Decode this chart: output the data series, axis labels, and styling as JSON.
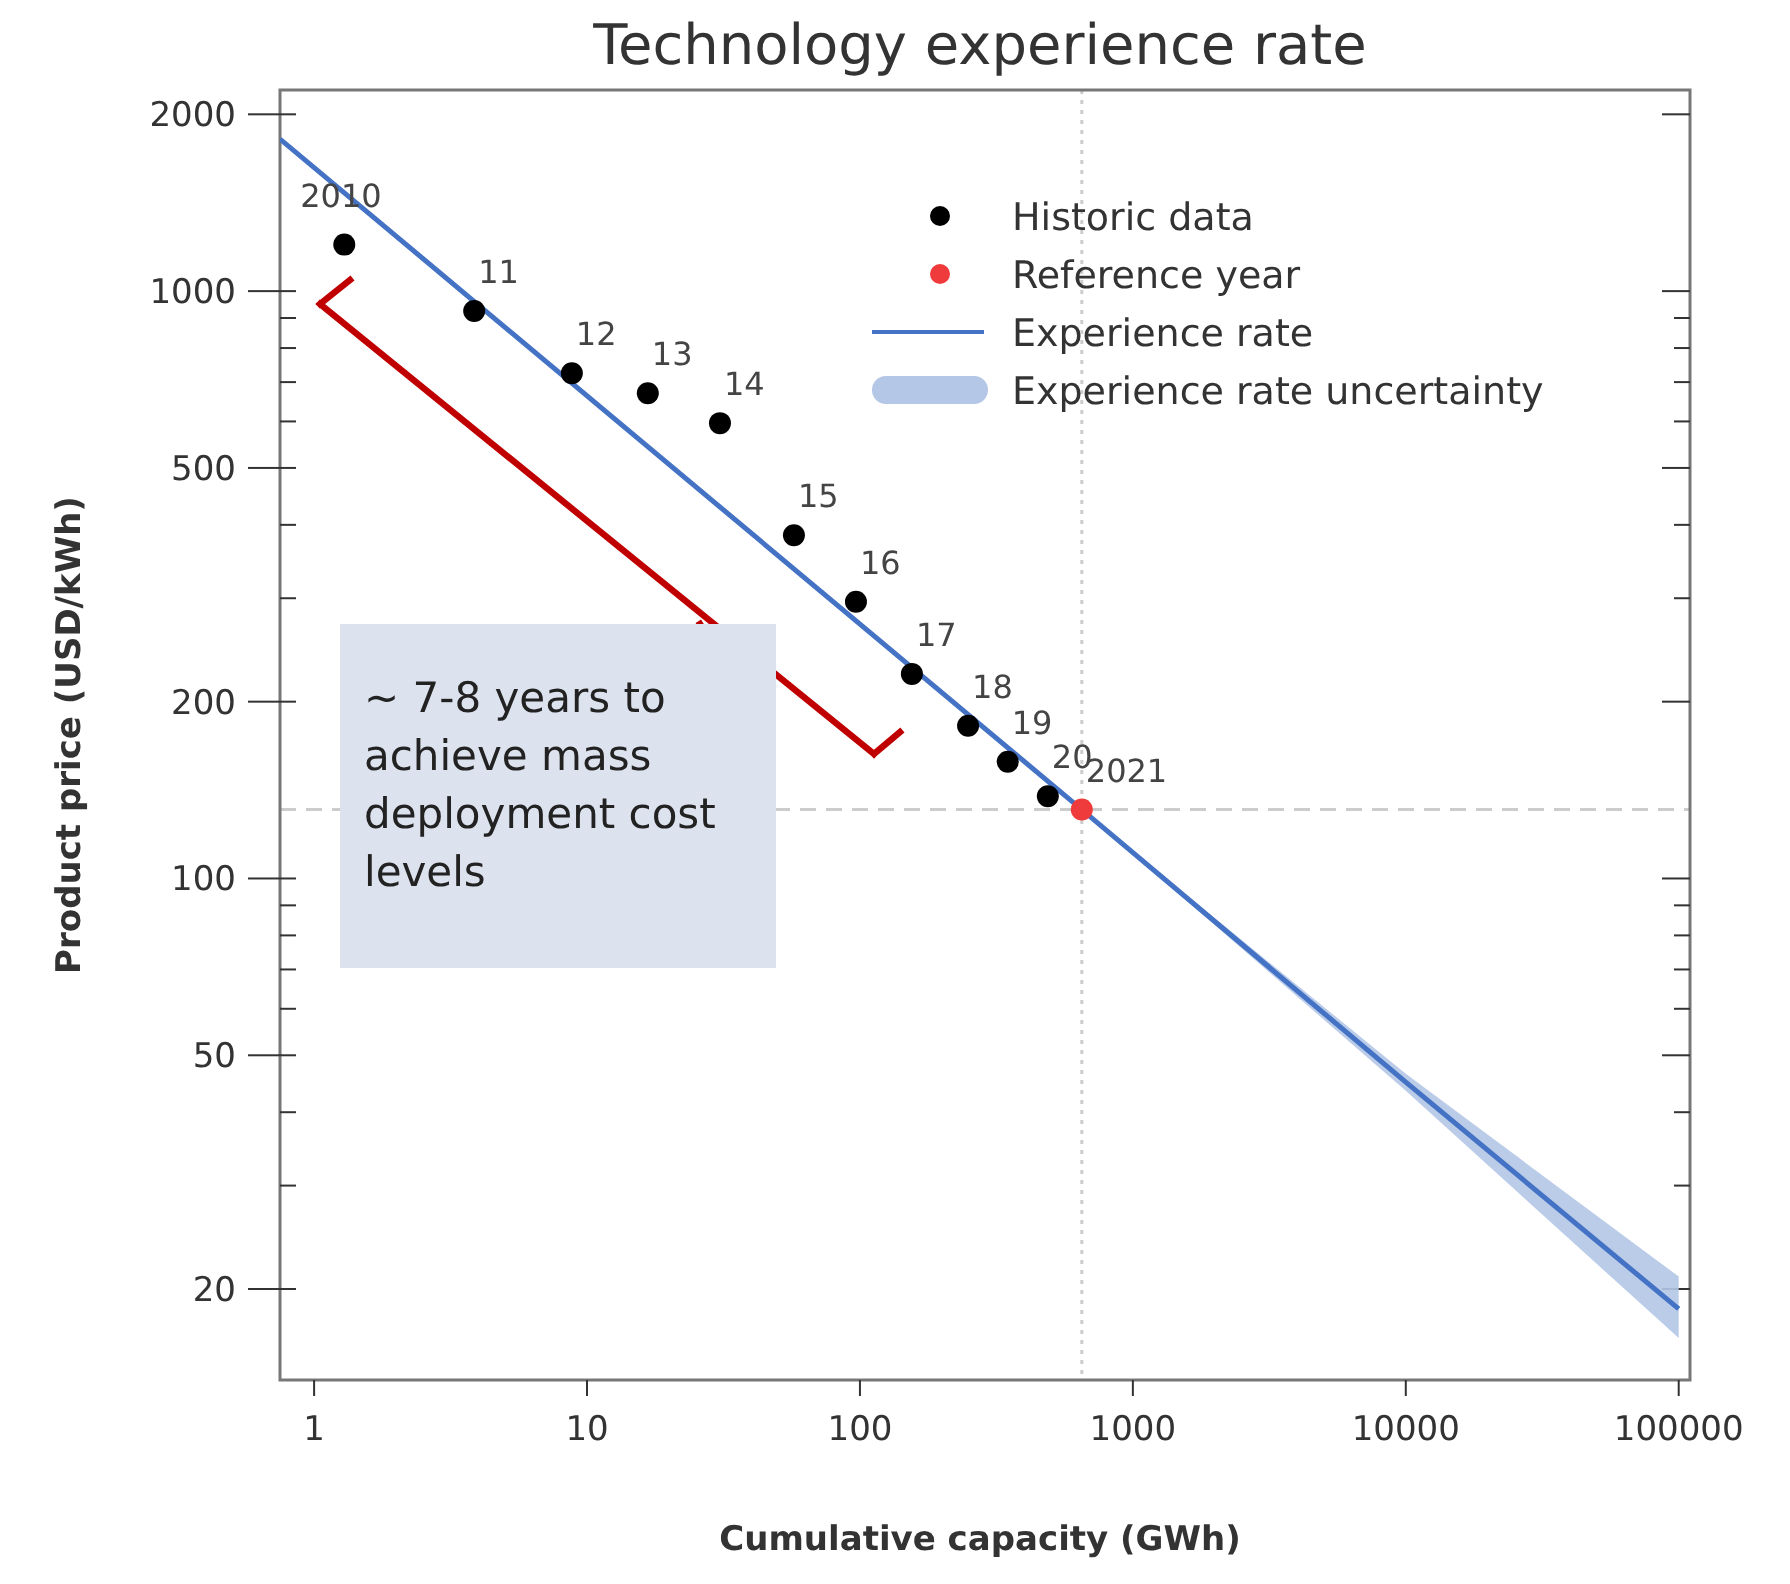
{
  "chart_data": {
    "type": "scatter",
    "title": "Technology experience rate",
    "xlabel": "Cumulative capacity (GWh)",
    "ylabel": "Product price (USD/kWh)",
    "log": "xy",
    "xlim": [
      0.75,
      110000
    ],
    "ylim": [
      14,
      2200
    ],
    "xticks": [
      1,
      10,
      100,
      1000,
      10000,
      100000
    ],
    "yticks": [
      20,
      {
        "value": 30,
        "label": null
      },
      {
        "value": 40,
        "label": null
      },
      50,
      {
        "value": 60,
        "label": null
      },
      {
        "value": 70,
        "label": null
      },
      {
        "value": 80,
        "label": null
      },
      {
        "value": 90,
        "label": null
      },
      100,
      200,
      {
        "value": 300,
        "label": null
      },
      {
        "value": 400,
        "label": null
      },
      500,
      {
        "value": 600,
        "label": null
      },
      {
        "value": 700,
        "label": null
      },
      {
        "value": 800,
        "label": null
      },
      {
        "value": 900,
        "label": null
      },
      1000,
      2000
    ],
    "grid": false,
    "legend": "top right",
    "marker": "circle",
    "series": [
      {
        "name": "Historic data",
        "color": "#000000",
        "x": [
          1.29,
          3.86,
          8.8,
          16.7,
          30.7,
          57.3,
          96.7,
          155,
          249,
          348,
          488
        ],
        "values": [
          1200,
          925,
          725,
          670,
          596,
          384,
          296,
          223,
          182,
          158,
          138
        ]
      },
      {
        "name": "Reference year",
        "color": "#ef3b3b",
        "x": [
          650
        ],
        "values": [
          131
        ]
      },
      {
        "name": "Experience rate",
        "type": "line",
        "color": "#4472c4",
        "line_style": "solid",
        "marker": "none",
        "x": [
          0.75,
          650,
          10000,
          100000
        ],
        "values": [
          1815,
          131,
          45,
          18.5
        ],
        "lower": [
          null,
          131,
          43.5,
          16.5
        ],
        "upper": [
          null,
          131,
          46.5,
          21
        ]
      },
      {
        "name": "Experience rate uncertainty",
        "type": "area",
        "color": "#b4c7e7"
      }
    ],
    "ref_lines": [
      {
        "axis": "y",
        "value": 131,
        "line_style": "dashed",
        "color": "#cccccc"
      },
      {
        "axis": "x",
        "value": 650,
        "line_style": "dotted",
        "color": "#cccccc"
      }
    ],
    "annotations": [
      {
        "text": "2010",
        "x": 1.29,
        "y": 1200
      },
      {
        "text": "11",
        "x": 3.86,
        "y": 925
      },
      {
        "text": "12",
        "x": 8.8,
        "y": 725
      },
      {
        "text": "13",
        "x": 16.7,
        "y": 670
      },
      {
        "text": "14",
        "x": 30.7,
        "y": 596
      },
      {
        "text": "15",
        "x": 57.3,
        "y": 384
      },
      {
        "text": "16",
        "x": 96.7,
        "y": 296
      },
      {
        "text": "17",
        "x": 155,
        "y": 223
      },
      {
        "text": "18",
        "x": 249,
        "y": 182
      },
      {
        "text": "19",
        "x": 348,
        "y": 158
      },
      {
        "text": "20",
        "x": 488,
        "y": 138
      },
      {
        "text": "2021",
        "x": 650,
        "y": 131
      },
      "~ 7-8 years to achieve mass deployment cost levels"
    ]
  }
}
